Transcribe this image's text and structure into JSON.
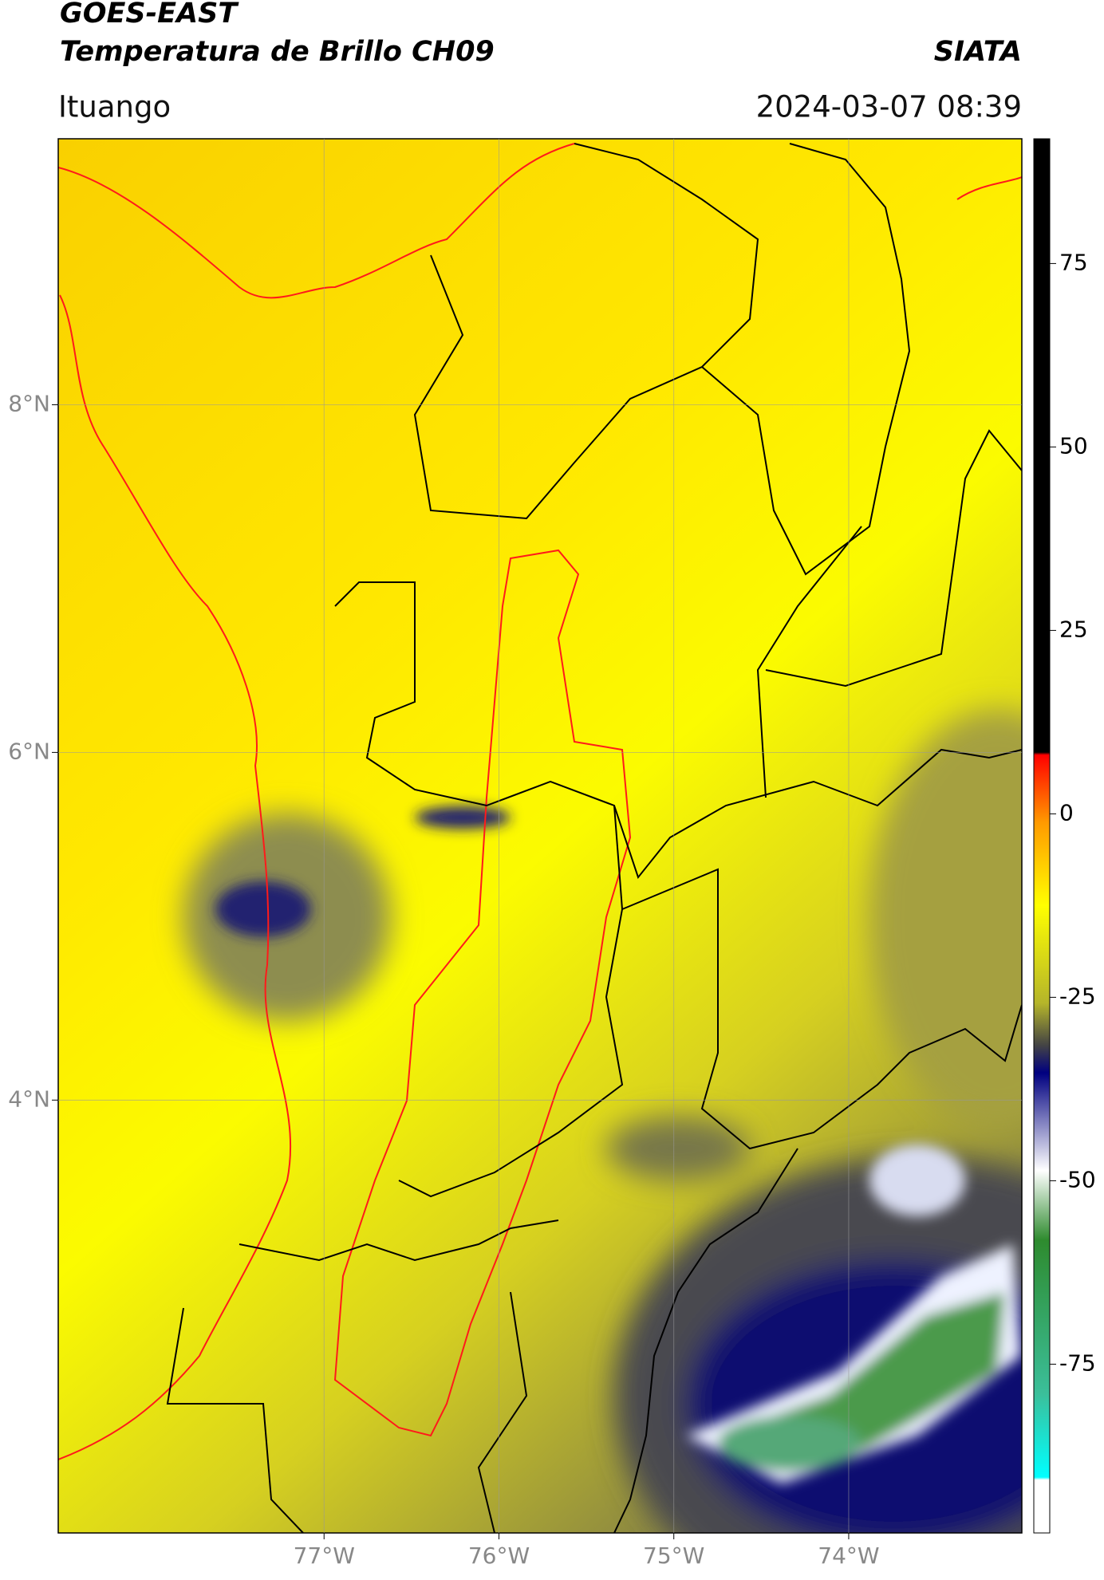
{
  "header": {
    "title": "GOES-EAST",
    "subtitle": "Temperatura de Brillo CH09",
    "source": "SIATA",
    "location": "Ituango",
    "datetime": "2024-03-07 08:39"
  },
  "map": {
    "xlim": [
      -78.52,
      -73.01
    ],
    "ylim": [
      1.51,
      9.53
    ],
    "xticks": [
      {
        "value": -77,
        "label": "77°W"
      },
      {
        "value": -76,
        "label": "76°W"
      },
      {
        "value": -75,
        "label": "75°W"
      },
      {
        "value": -74,
        "label": "74°W"
      }
    ],
    "yticks": [
      {
        "value": 8,
        "label": "8°N"
      },
      {
        "value": 6,
        "label": "6°N"
      },
      {
        "value": 4,
        "label": "4°N"
      }
    ],
    "grid": true
  },
  "colorbar": {
    "lim": [
      -98,
      92
    ],
    "ticks": [
      75,
      50,
      25,
      0,
      -25,
      -50,
      -75
    ]
  }
}
